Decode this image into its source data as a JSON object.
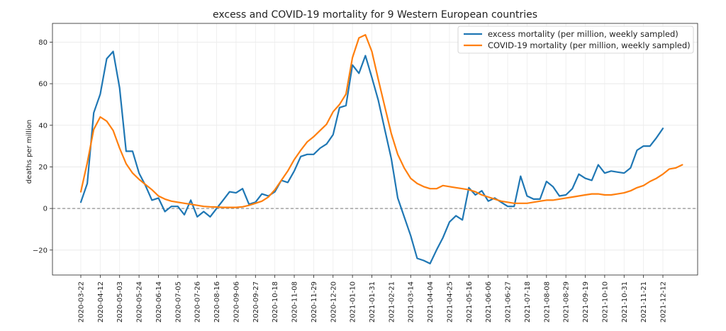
{
  "chart_data": {
    "type": "line",
    "title": "excess and COVID-19 mortality for 9 Western European countries",
    "xlabel": "",
    "ylabel": "deaths per million",
    "ylim": [
      -32,
      89
    ],
    "yticks": [
      -20,
      0,
      20,
      40,
      60,
      80
    ],
    "grid": true,
    "legend_position": "top-right",
    "zero_line": true,
    "x_start": "2020-03-22",
    "x_step_days": 7,
    "xtick_labels": [
      "2020-03-22",
      "2020-04-12",
      "2020-05-03",
      "2020-05-24",
      "2020-06-14",
      "2020-07-05",
      "2020-07-26",
      "2020-08-16",
      "2020-09-06",
      "2020-09-27",
      "2020-10-18",
      "2020-11-08",
      "2020-11-29",
      "2020-12-20",
      "2021-01-10",
      "2021-01-31",
      "2021-02-21",
      "2021-03-14",
      "2021-04-04",
      "2021-04-25",
      "2021-05-16",
      "2021-06-06",
      "2021-06-27",
      "2021-07-18",
      "2021-08-08",
      "2021-08-29",
      "2021-09-19",
      "2021-10-10",
      "2021-10-31",
      "2021-11-21",
      "2021-12-12"
    ],
    "series": [
      {
        "name": "excess mortality (per million, weekly sampled)",
        "color": "#1f77b4",
        "values": [
          3,
          12,
          46,
          55,
          72,
          75.5,
          58,
          27.5,
          27.5,
          17,
          11,
          4,
          5,
          -1.5,
          1,
          1,
          -3,
          4,
          -4,
          -1.5,
          -4,
          0,
          4,
          8,
          7.5,
          9.5,
          2,
          3,
          7,
          6,
          8,
          13.5,
          12.5,
          18,
          25,
          26,
          26,
          29,
          31,
          35.5,
          48.5,
          49.5,
          69,
          65,
          73.5,
          63,
          52,
          38,
          24,
          5,
          -4,
          -13,
          -24,
          -25,
          -26.5,
          -20,
          -14,
          -6.5,
          -3.5,
          -5.5,
          10,
          6.5,
          8.5,
          3.5,
          5,
          3,
          1,
          1,
          15.5,
          6,
          4.5,
          4.5,
          13,
          10.5,
          6,
          6.5,
          9.5,
          16.5,
          14.5,
          13.5,
          21,
          17,
          18,
          17.5,
          17,
          19.5,
          28,
          30,
          30,
          34,
          38.5
        ]
      },
      {
        "name": "COVID-19 mortality (per million, weekly sampled)",
        "color": "#ff7f0e",
        "values": [
          8,
          22,
          38,
          44,
          42,
          37.5,
          29,
          21.5,
          17,
          14,
          11.5,
          9,
          6,
          4.5,
          3.5,
          3,
          2.5,
          2,
          1.5,
          1,
          0.8,
          0.7,
          0.5,
          0.5,
          0.5,
          0.8,
          1.5,
          2.5,
          3.5,
          5.5,
          9,
          13.5,
          18,
          23.5,
          28,
          32,
          34.5,
          37.5,
          40.5,
          46.5,
          50,
          55,
          72.5,
          82,
          83.5,
          75.5,
          62,
          49,
          36,
          26,
          19.5,
          14.5,
          12,
          10.5,
          9.5,
          9.5,
          11,
          10.5,
          10,
          9.5,
          9,
          8,
          6.5,
          5.5,
          4.5,
          3.5,
          3,
          2.5,
          2.5,
          2.5,
          3,
          3.5,
          4,
          4,
          4.5,
          5,
          5.5,
          6,
          6.5,
          7,
          7,
          6.5,
          6.5,
          7,
          7.5,
          8.5,
          10,
          11,
          13,
          14.5,
          16.5,
          19,
          19.5,
          21
        ]
      }
    ]
  }
}
